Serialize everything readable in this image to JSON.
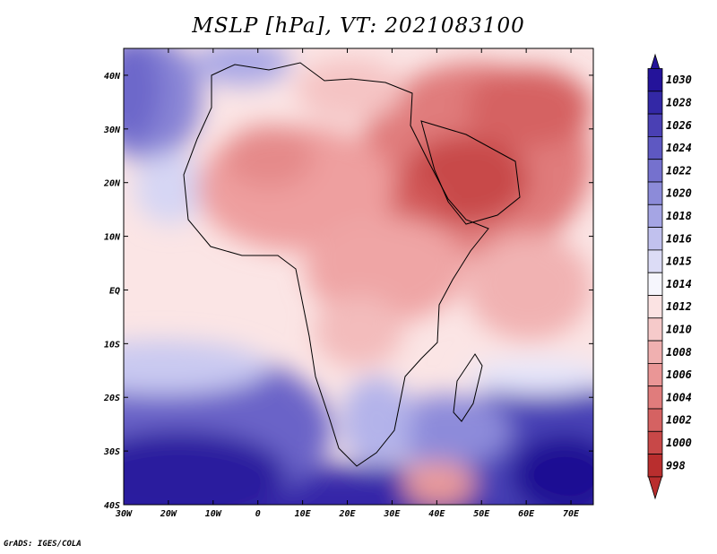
{
  "title": "MSLP [hPa], VT: 2021083100",
  "credit": "GrADS: IGES/COLA",
  "map": {
    "variable": "MSLP",
    "units": "hPa",
    "valid_time": "2021083100",
    "lon_range": [
      -30,
      75
    ],
    "lat_range": [
      -40,
      45
    ],
    "lon_ticks": [
      "30W",
      "20W",
      "10W",
      "0",
      "10E",
      "20E",
      "30E",
      "40E",
      "50E",
      "60E",
      "70E"
    ],
    "lon_values": [
      -30,
      -20,
      -10,
      0,
      10,
      20,
      30,
      40,
      50,
      60,
      70
    ],
    "lat_ticks": [
      "40S",
      "30S",
      "20S",
      "10S",
      "EQ",
      "10N",
      "20N",
      "30N",
      "40N"
    ],
    "lat_values": [
      -40,
      -30,
      -20,
      -10,
      0,
      10,
      20,
      30,
      40
    ]
  },
  "colorbar": {
    "labels": [
      "1030",
      "1028",
      "1026",
      "1024",
      "1022",
      "1020",
      "1018",
      "1016",
      "1015",
      "1014",
      "1012",
      "1010",
      "1008",
      "1006",
      "1004",
      "1002",
      "1000",
      "998"
    ],
    "colors": [
      "#24139a",
      "#3328a6",
      "#4a40b4",
      "#5e58c2",
      "#7571ce",
      "#8c8bd9",
      "#a5a5e4",
      "#c1c1ee",
      "#dcdcf6",
      "#f6f6fd",
      "#fbe3e3",
      "#f6caca",
      "#f0b0b0",
      "#ea9696",
      "#e07c7c",
      "#d56262",
      "#c84848",
      "#b92e2e"
    ]
  }
}
